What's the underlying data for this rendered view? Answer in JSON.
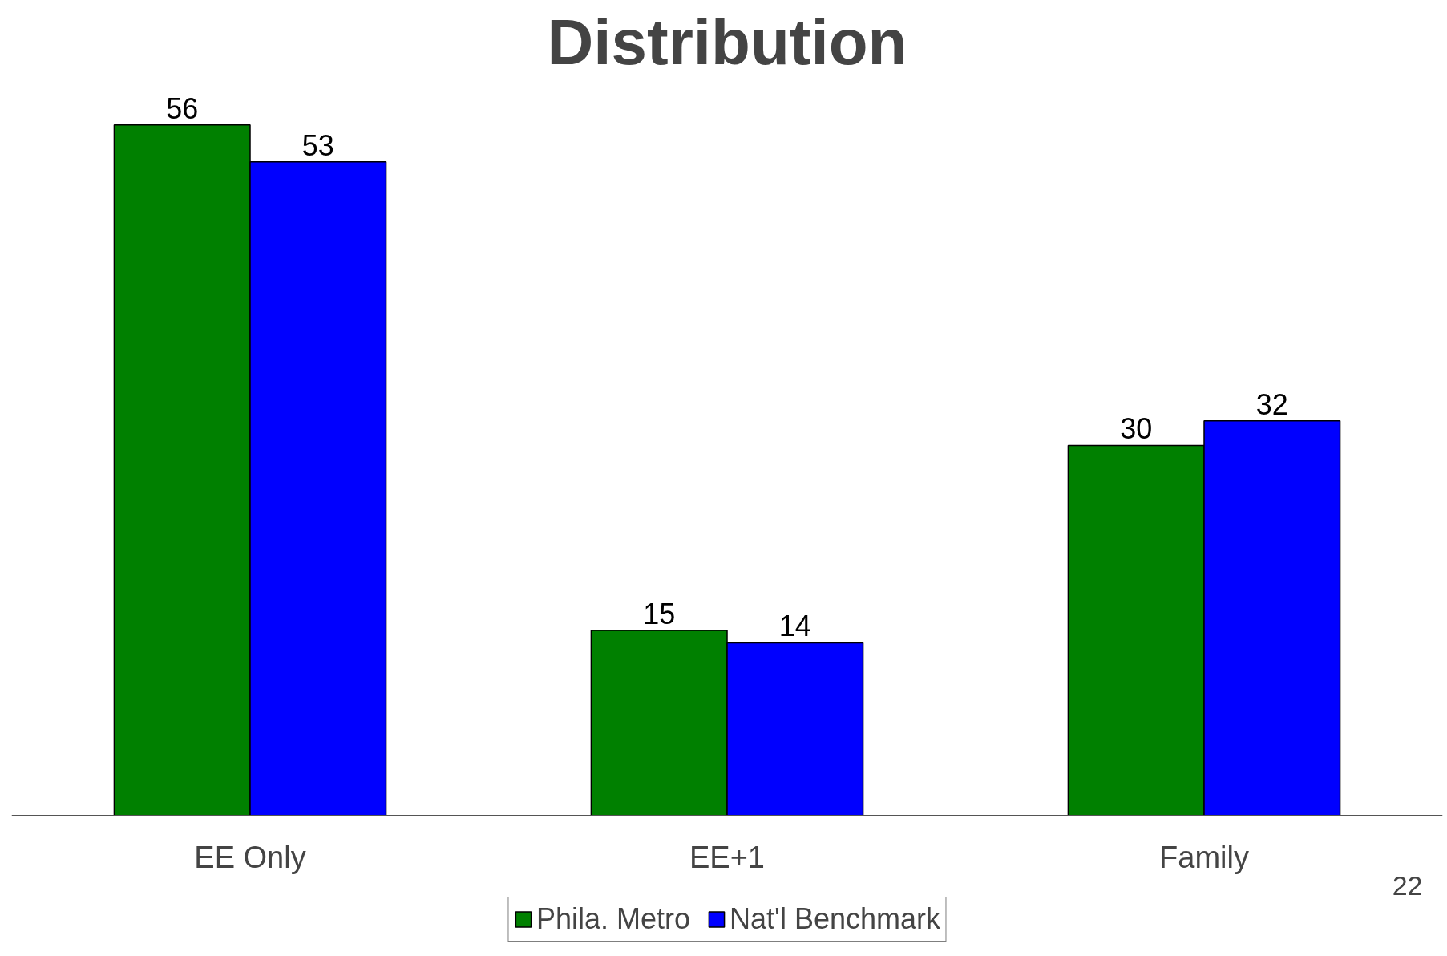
{
  "chart_data": {
    "type": "bar",
    "title": "Distribution",
    "categories": [
      "EE Only",
      "EE+1",
      "Family"
    ],
    "series": [
      {
        "name": "Phila. Metro",
        "color": "#008000",
        "values": [
          56,
          15,
          30
        ]
      },
      {
        "name": "Nat'l Benchmark",
        "color": "#0000ff",
        "values": [
          53,
          14,
          32
        ]
      }
    ],
    "data_labels": true,
    "grid": false,
    "legend": "bottom",
    "annotations": [
      "22"
    ]
  }
}
